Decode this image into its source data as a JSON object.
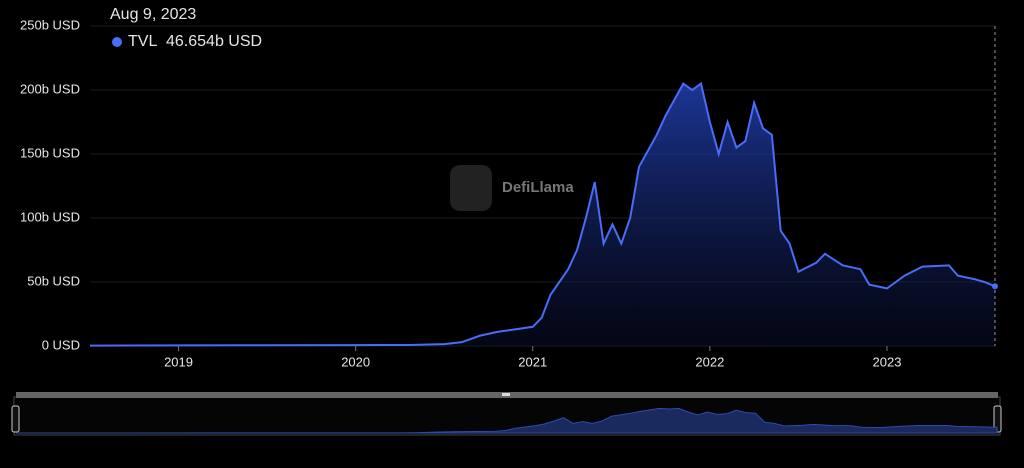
{
  "chart_data": {
    "type": "area",
    "watermark": "DefiLlama",
    "tooltip": {
      "date": "Aug 9, 2023",
      "value": 46.654,
      "value_label": "46.654b USD"
    },
    "series": [
      {
        "name": "TVL",
        "color": "#4a6cf7",
        "x": [
          2018.5,
          2019.0,
          2019.5,
          2020.0,
          2020.3,
          2020.5,
          2020.6,
          2020.7,
          2020.8,
          2020.9,
          2021.0,
          2021.05,
          2021.1,
          2021.2,
          2021.25,
          2021.3,
          2021.35,
          2021.4,
          2021.45,
          2021.5,
          2021.55,
          2021.6,
          2021.7,
          2021.75,
          2021.85,
          2021.9,
          2021.95,
          2022.0,
          2022.05,
          2022.1,
          2022.15,
          2022.2,
          2022.25,
          2022.3,
          2022.35,
          2022.4,
          2022.45,
          2022.5,
          2022.6,
          2022.65,
          2022.75,
          2022.85,
          2022.9,
          2023.0,
          2023.1,
          2023.2,
          2023.35,
          2023.4,
          2023.5,
          2023.55,
          2023.61
        ],
        "values": [
          0.3,
          0.5,
          0.6,
          0.7,
          0.8,
          1.5,
          3,
          8,
          11,
          13,
          15,
          22,
          40,
          60,
          75,
          100,
          128,
          80,
          95,
          80,
          100,
          140,
          165,
          180,
          205,
          200,
          205,
          175,
          150,
          175,
          155,
          160,
          190,
          170,
          165,
          90,
          80,
          58,
          65,
          72,
          63,
          60,
          48,
          45,
          55,
          62,
          63,
          55,
          52,
          50,
          46.654
        ]
      }
    ],
    "xlim": [
      2018.5,
      2023.61
    ],
    "xticks": [
      2019,
      2020,
      2021,
      2022,
      2023
    ],
    "ylim": [
      0,
      250
    ],
    "yticks": [
      {
        "value": 0,
        "label": "0 USD"
      },
      {
        "value": 50,
        "label": "50b USD"
      },
      {
        "value": 100,
        "label": "100b USD"
      },
      {
        "value": 150,
        "label": "150b USD"
      },
      {
        "value": 200,
        "label": "200b USD"
      },
      {
        "value": 250,
        "label": "250b USD"
      }
    ],
    "grid": true
  }
}
